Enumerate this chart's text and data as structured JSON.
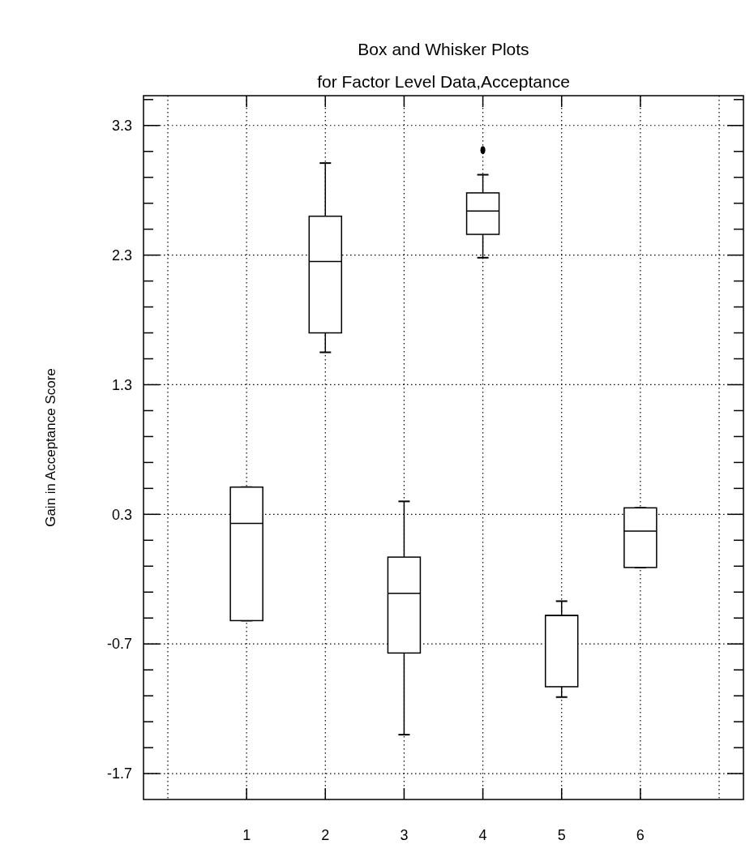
{
  "chart_data": {
    "type": "box",
    "title": "Box and Whisker Plots",
    "subtitle": "for Factor Level Data,Acceptance",
    "ylabel": "Gain in Acceptance Score",
    "categories": [
      "1",
      "2",
      "3",
      "4",
      "5",
      "6"
    ],
    "boxes": [
      {
        "low": -0.52,
        "q1": -0.52,
        "median": 0.23,
        "q3": 0.51,
        "high": 0.51
      },
      {
        "low": 1.55,
        "q1": 1.7,
        "median": 2.25,
        "q3": 2.6,
        "high": 3.01
      },
      {
        "low": -1.4,
        "q1": -0.77,
        "median": -0.31,
        "q3": -0.03,
        "high": 0.4
      },
      {
        "low": 2.28,
        "q1": 2.46,
        "median": 2.64,
        "q3": 2.78,
        "high": 2.92,
        "outliers": [
          3.11
        ]
      },
      {
        "low": -1.11,
        "q1": -1.03,
        "median": -0.48,
        "q3": -0.48,
        "high": -0.37
      },
      {
        "low": -0.11,
        "q1": -0.11,
        "median": 0.17,
        "q3": 0.35,
        "high": 0.35
      }
    ],
    "ylim": [
      -1.9,
      3.53
    ],
    "yticks": [
      {
        "value": -1.7,
        "label": "-1.7"
      },
      {
        "value": -1.5,
        "label": null
      },
      {
        "value": -1.3,
        "label": null
      },
      {
        "value": -1.1,
        "label": null
      },
      {
        "value": -0.9,
        "label": null
      },
      {
        "value": -0.7,
        "label": "-0.7"
      },
      {
        "value": -0.5,
        "label": null
      },
      {
        "value": -0.3,
        "label": null
      },
      {
        "value": -0.1,
        "label": null
      },
      {
        "value": 0.1,
        "label": null
      },
      0.3,
      {
        "value": 0.5,
        "label": null
      },
      {
        "value": 0.7,
        "label": null
      },
      {
        "value": 0.9,
        "label": null
      },
      {
        "value": 1.1,
        "label": null
      },
      1.3,
      {
        "value": 1.5,
        "label": null
      },
      {
        "value": 1.7,
        "label": null
      },
      {
        "value": 1.9,
        "label": null
      },
      {
        "value": 2.1,
        "label": null
      },
      2.3,
      {
        "value": 2.5,
        "label": null
      },
      {
        "value": 2.7,
        "label": null
      },
      {
        "value": 2.9,
        "label": null
      },
      {
        "value": 3.1,
        "label": null
      },
      3.3,
      {
        "value": 3.5,
        "label": null
      }
    ],
    "grid": true
  }
}
